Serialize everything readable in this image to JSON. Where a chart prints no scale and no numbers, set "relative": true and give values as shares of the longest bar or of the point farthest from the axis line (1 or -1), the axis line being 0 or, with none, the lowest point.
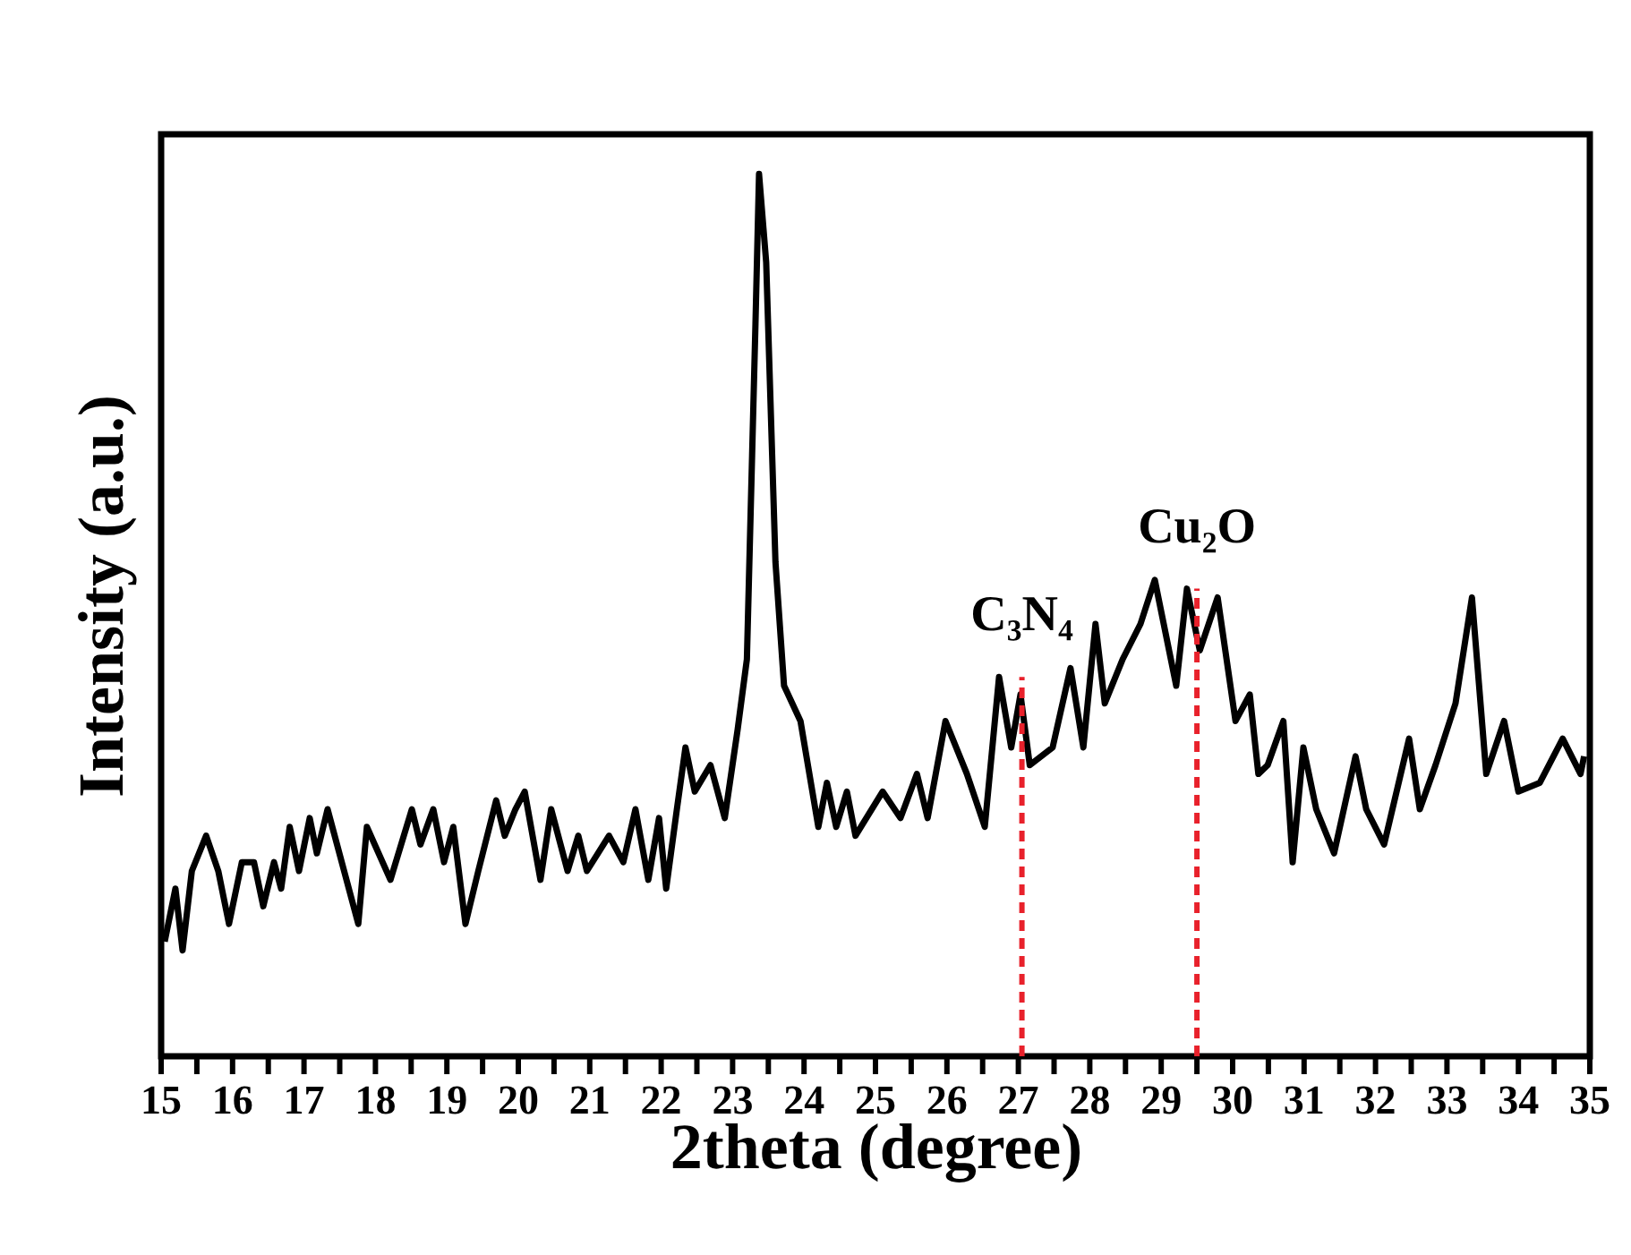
{
  "chart_data": {
    "type": "line",
    "relative": true,
    "xlabel": "2theta (degree)",
    "ylabel": "Intensity (a.u.)",
    "xlim": [
      15,
      35
    ],
    "xticks": [
      15,
      {
        "value": 15.5,
        "label": null
      },
      16,
      {
        "value": 16.5,
        "label": null
      },
      17,
      {
        "value": 17.5,
        "label": null
      },
      18,
      {
        "value": 18.5,
        "label": null
      },
      19,
      {
        "value": 19.5,
        "label": null
      },
      20,
      {
        "value": 20.5,
        "label": null
      },
      21,
      {
        "value": 21.5,
        "label": null
      },
      22,
      {
        "value": 22.5,
        "label": null
      },
      23,
      {
        "value": 23.5,
        "label": null
      },
      24,
      {
        "value": 24.5,
        "label": null
      },
      25,
      {
        "value": 25.5,
        "label": null
      },
      26,
      {
        "value": 26.5,
        "label": null
      },
      27,
      {
        "value": 27.5,
        "label": null
      },
      28,
      {
        "value": 28.5,
        "label": null
      },
      29,
      {
        "value": 29.5,
        "label": null
      },
      30,
      {
        "value": 30.5,
        "label": null
      },
      31,
      {
        "value": 31.5,
        "label": null
      },
      32,
      {
        "value": 32.5,
        "label": null
      },
      33,
      {
        "value": 33.5,
        "label": null
      },
      34,
      {
        "value": 34.5,
        "label": null
      },
      35
    ],
    "tick_labels": "x",
    "grid": false,
    "marker": "none",
    "line_style": "solid",
    "series": [
      {
        "color": "#000000",
        "x": [
          15.05,
          15.2,
          15.3,
          15.43,
          15.63,
          15.8,
          15.95,
          16.13,
          16.3,
          16.43,
          16.58,
          16.68,
          16.8,
          16.93,
          17.08,
          17.18,
          17.33,
          17.76,
          17.88,
          18.21,
          18.51,
          18.63,
          18.81,
          18.96,
          19.09,
          19.26,
          19.44,
          19.69,
          19.81,
          19.96,
          20.09,
          20.31,
          20.46,
          20.69,
          20.84,
          20.96,
          21.27,
          21.47,
          21.64,
          21.82,
          21.97,
          22.07,
          22.22,
          22.34,
          22.47,
          22.69,
          22.89,
          23.07,
          23.2,
          23.32,
          23.37,
          23.47,
          23.6,
          23.72,
          23.95,
          24.2,
          24.32,
          24.45,
          24.6,
          24.72,
          25.1,
          25.35,
          25.58,
          25.73,
          25.98,
          26.28,
          26.53,
          26.73,
          26.9,
          27.03,
          27.16,
          27.48,
          27.73,
          27.91,
          28.08,
          28.21,
          28.46,
          28.71,
          28.91,
          29.21,
          29.36,
          29.54,
          29.79,
          30.04,
          30.24,
          30.36,
          30.49,
          30.71,
          30.84,
          30.99,
          31.17,
          31.42,
          31.72,
          31.87,
          32.12,
          32.47,
          32.62,
          32.84,
          33.12,
          33.35,
          33.55,
          33.8,
          34.0,
          34.3,
          34.62,
          34.87,
          34.92
        ],
        "values": [
          0.13,
          0.19,
          0.12,
          0.21,
          0.25,
          0.21,
          0.15,
          0.22,
          0.22,
          0.17,
          0.22,
          0.19,
          0.26,
          0.21,
          0.27,
          0.23,
          0.28,
          0.15,
          0.26,
          0.2,
          0.28,
          0.24,
          0.28,
          0.22,
          0.26,
          0.15,
          0.21,
          0.29,
          0.25,
          0.28,
          0.3,
          0.2,
          0.28,
          0.21,
          0.25,
          0.21,
          0.25,
          0.22,
          0.28,
          0.2,
          0.27,
          0.19,
          0.28,
          0.35,
          0.3,
          0.33,
          0.27,
          0.37,
          0.45,
          0.83,
          1.0,
          0.9,
          0.56,
          0.42,
          0.38,
          0.26,
          0.31,
          0.26,
          0.3,
          0.25,
          0.3,
          0.27,
          0.32,
          0.27,
          0.38,
          0.32,
          0.26,
          0.43,
          0.35,
          0.41,
          0.33,
          0.35,
          0.44,
          0.35,
          0.49,
          0.4,
          0.45,
          0.49,
          0.54,
          0.42,
          0.53,
          0.46,
          0.52,
          0.38,
          0.41,
          0.32,
          0.33,
          0.38,
          0.22,
          0.35,
          0.28,
          0.23,
          0.34,
          0.28,
          0.24,
          0.36,
          0.28,
          0.33,
          0.4,
          0.52,
          0.32,
          0.38,
          0.3,
          0.31,
          0.36,
          0.32,
          0.34
        ]
      }
    ],
    "ref_lines": [
      {
        "axis": "x",
        "value": 27.05,
        "label": "C₃N₄",
        "color": "#e8212b",
        "line_style": "dashed"
      },
      {
        "axis": "x",
        "value": 29.5,
        "label": "Cu₂O",
        "color": "#e8212b",
        "line_style": "dashed"
      }
    ]
  }
}
